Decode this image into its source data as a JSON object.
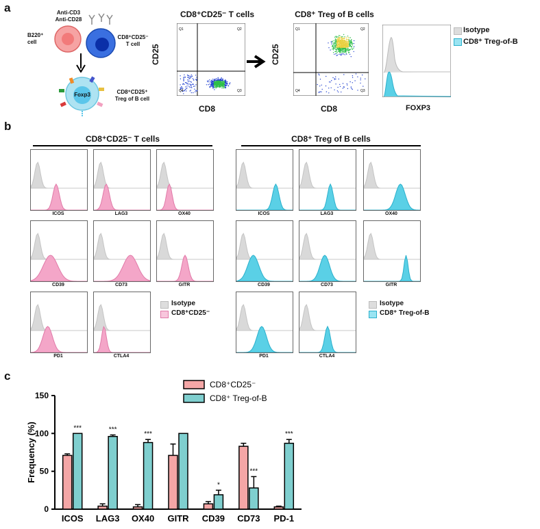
{
  "panels": {
    "a": "a",
    "b": "b",
    "c": "c"
  },
  "schematic": {
    "antibodies": "Anti-CD3\nAnti-CD28",
    "b_cell": "B220⁺\ncell",
    "t_cell": "CD8⁺CD25⁻\nT cell",
    "foxp3": "Foxp3",
    "treg": "CD8⁺CD25⁺\nTreg of B cell"
  },
  "flow": {
    "plot1_title": "CD8⁺CD25⁻ T cells",
    "plot2_title": "CD8⁺ Treg of B cells",
    "y_label": "CD25",
    "x_label": "CD8",
    "quadrants": [
      "Q1",
      "Q2",
      "Q4",
      "Q3"
    ],
    "hist_x_label": "FOXP3",
    "legend": {
      "isotype": "Isotype",
      "treg": "CD8⁺ Treg-of-B"
    }
  },
  "panel_b": {
    "left_title": "CD8⁺CD25⁻ T cells",
    "right_title": "CD8⁺ Treg of B cells",
    "markers": [
      "ICOS",
      "LAG3",
      "OX40",
      "CD39",
      "CD73",
      "GITR",
      "PD1",
      "CTLA4"
    ],
    "legend_left": {
      "isotype": "Isotype",
      "cells": "CD8⁺CD25⁻"
    },
    "legend_right": {
      "isotype": "Isotype",
      "cells": "CD8⁺ Treg-of-B"
    }
  },
  "colors": {
    "pink": "#f4a6c8",
    "pink_edge": "#e07aa8",
    "cyan": "#5ad0e6",
    "cyan_edge": "#2ab0cc",
    "gray": "#d9d9d9",
    "bar_pink": "#f4a6a6",
    "bar_cyan": "#7fcfcf"
  },
  "chart_data": {
    "type": "bar",
    "categories": [
      "ICOS",
      "LAG3",
      "OX40",
      "GITR",
      "CD39",
      "CD73",
      "PD-1"
    ],
    "series": [
      {
        "name": "CD8⁺CD25⁻",
        "values": [
          71,
          4,
          3,
          71,
          7,
          83,
          3
        ],
        "errors": [
          2,
          3,
          3,
          15,
          3,
          4,
          1
        ]
      },
      {
        "name": "CD8⁺ Treg-of-B",
        "values": [
          100,
          96,
          88,
          100,
          19,
          28,
          87
        ],
        "errors": [
          0,
          2,
          4,
          0,
          6,
          15,
          5
        ]
      }
    ],
    "significance": [
      "***",
      "***",
      "***",
      "",
      "*",
      "***",
      "***"
    ],
    "ylabel": "Frequency (%)",
    "yticks": [
      0,
      50,
      100,
      150
    ],
    "ylim": [
      0,
      150
    ]
  }
}
